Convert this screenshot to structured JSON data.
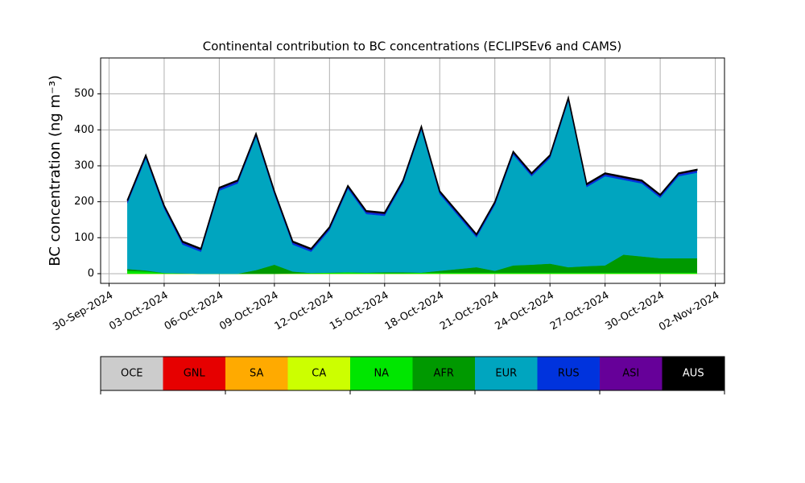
{
  "chart_data": {
    "type": "stacked_area",
    "title": "Continental contribution to BC concentrations (ECLIPSEv6 and CAMS)",
    "y_label": "BC concentration (ng m⁻³)",
    "x": [
      "2024-10-01",
      "2024-10-02",
      "2024-10-03",
      "2024-10-04",
      "2024-10-05",
      "2024-10-06",
      "2024-10-07",
      "2024-10-08",
      "2024-10-09",
      "2024-10-10",
      "2024-10-11",
      "2024-10-12",
      "2024-10-13",
      "2024-10-14",
      "2024-10-15",
      "2024-10-16",
      "2024-10-17",
      "2024-10-18",
      "2024-10-19",
      "2024-10-20",
      "2024-10-21",
      "2024-10-22",
      "2024-10-23",
      "2024-10-24",
      "2024-10-25",
      "2024-10-26",
      "2024-10-27",
      "2024-10-28",
      "2024-10-29",
      "2024-10-30",
      "2024-10-31",
      "2024-11-01"
    ],
    "series": [
      {
        "name": "OCE",
        "color": "#cccccc",
        "values": [
          0,
          0,
          0,
          0,
          0,
          0,
          0,
          0,
          0,
          0,
          0,
          0,
          0,
          0,
          0,
          0,
          0,
          0,
          0,
          0,
          0,
          0,
          0,
          0,
          0,
          0,
          0,
          0,
          0,
          0,
          0,
          0
        ]
      },
      {
        "name": "GNL",
        "color": "#e60000",
        "values": [
          0,
          0,
          0,
          0,
          0,
          0,
          0,
          0,
          0,
          0,
          0,
          0,
          0,
          0,
          0,
          0,
          0,
          0,
          0,
          0,
          0,
          0,
          0,
          0,
          0,
          0,
          0,
          0,
          0,
          0,
          0,
          0
        ]
      },
      {
        "name": "SA",
        "color": "#ffaa00",
        "values": [
          0,
          0,
          0,
          0,
          0,
          0,
          0,
          0,
          0,
          0,
          0,
          0,
          0,
          0,
          0,
          0,
          0,
          0,
          0,
          0,
          0,
          0,
          0,
          0,
          0,
          0,
          0,
          0,
          0,
          0,
          0,
          0
        ]
      },
      {
        "name": "CA",
        "color": "#ccff00",
        "values": [
          0,
          0,
          0,
          0,
          0,
          0,
          0,
          0,
          0,
          0,
          0,
          0,
          0,
          0,
          0,
          0,
          0,
          0,
          0,
          0,
          0,
          0,
          0,
          0,
          0,
          0,
          0,
          0,
          0,
          0,
          0,
          0
        ]
      },
      {
        "name": "NA",
        "color": "#00e600",
        "values": [
          8,
          6,
          2,
          1,
          0,
          0,
          0,
          0,
          0,
          1,
          2,
          3,
          4,
          3,
          2,
          2,
          3,
          3,
          3,
          3,
          3,
          3,
          3,
          3,
          3,
          3,
          3,
          3,
          3,
          3,
          3,
          3
        ]
      },
      {
        "name": "AFR",
        "color": "#009900",
        "values": [
          5,
          3,
          0,
          0,
          0,
          0,
          0,
          10,
          25,
          5,
          0,
          0,
          0,
          0,
          2,
          2,
          0,
          5,
          10,
          15,
          5,
          20,
          22,
          25,
          15,
          18,
          20,
          50,
          45,
          40,
          40,
          40
        ]
      },
      {
        "name": "EUR",
        "color": "#00a5bf",
        "values": [
          183,
          312,
          179,
          80,
          61,
          231,
          251,
          371,
          196,
          75,
          59,
          118,
          232,
          163,
          157,
          247,
          398,
          213,
          148,
          83,
          183,
          308,
          246,
          293,
          463,
          220,
          248,
          208,
          203,
          168,
          228,
          238
        ]
      },
      {
        "name": "RUS",
        "color": "#0033dd",
        "values": [
          5,
          5,
          5,
          5,
          5,
          5,
          5,
          5,
          5,
          5,
          5,
          5,
          5,
          5,
          5,
          5,
          5,
          5,
          5,
          5,
          5,
          5,
          5,
          5,
          5,
          5,
          5,
          5,
          5,
          5,
          5,
          5
        ]
      },
      {
        "name": "ASI",
        "color": "#660099",
        "values": [
          2,
          2,
          2,
          2,
          2,
          2,
          2,
          2,
          2,
          2,
          2,
          2,
          2,
          2,
          2,
          2,
          2,
          2,
          2,
          2,
          2,
          2,
          2,
          2,
          2,
          2,
          2,
          2,
          2,
          2,
          2,
          2
        ]
      },
      {
        "name": "AUS",
        "color": "#000000",
        "values": [
          2,
          2,
          2,
          2,
          2,
          2,
          2,
          2,
          2,
          2,
          2,
          2,
          2,
          2,
          2,
          2,
          2,
          2,
          2,
          2,
          2,
          2,
          2,
          2,
          2,
          2,
          2,
          2,
          2,
          2,
          2,
          2
        ]
      }
    ],
    "xlim": [
      "2024-09-29T13:00:00Z",
      "2024-11-02T12:00:00Z"
    ],
    "xticks": [
      {
        "value": "2024-09-30",
        "label": "30-Sep-2024"
      },
      {
        "value": "2024-10-03",
        "label": "03-Oct-2024"
      },
      {
        "value": "2024-10-06",
        "label": "06-Oct-2024"
      },
      {
        "value": "2024-10-09",
        "label": "09-Oct-2024"
      },
      {
        "value": "2024-10-12",
        "label": "12-Oct-2024"
      },
      {
        "value": "2024-10-15",
        "label": "15-Oct-2024"
      },
      {
        "value": "2024-10-18",
        "label": "18-Oct-2024"
      },
      {
        "value": "2024-10-21",
        "label": "21-Oct-2024"
      },
      {
        "value": "2024-10-24",
        "label": "24-Oct-2024"
      },
      {
        "value": "2024-10-27",
        "label": "27-Oct-2024"
      },
      {
        "value": "2024-10-30",
        "label": "30-Oct-2024"
      },
      {
        "value": "2024-11-02",
        "label": "02-Nov-2024"
      }
    ],
    "ylim": [
      -27,
      600
    ],
    "yticks": [
      0,
      100,
      200,
      300,
      400,
      500
    ],
    "grid": true,
    "legend": "bottom"
  }
}
